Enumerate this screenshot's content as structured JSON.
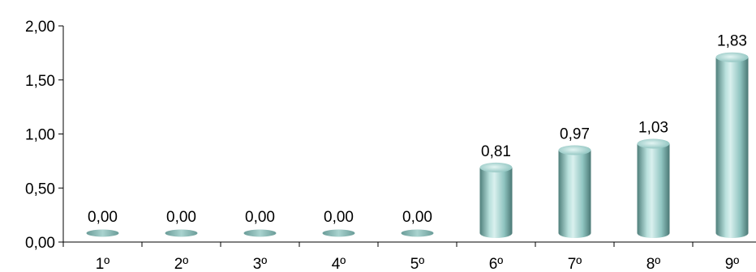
{
  "chart_data": {
    "type": "bar",
    "categories": [
      "1º",
      "2º",
      "3º",
      "4º",
      "5º",
      "6º",
      "7º",
      "8º",
      "9º"
    ],
    "values": [
      0.0,
      0.0,
      0.0,
      0.0,
      0.0,
      0.81,
      0.97,
      1.03,
      1.83
    ],
    "data_labels": [
      "0,00",
      "0,00",
      "0,00",
      "0,00",
      "0,00",
      "0,81",
      "0,97",
      "1,03",
      "1,83"
    ],
    "y_ticks": [
      "0,00",
      "0,50",
      "1,00",
      "1,50",
      "2,00"
    ],
    "y_tick_values": [
      0,
      0.5,
      1.0,
      1.5,
      2.0
    ],
    "ylim": [
      0,
      2
    ],
    "title": "",
    "xlabel": "",
    "ylabel": "",
    "grid": false,
    "legend": "none",
    "bar_shape": "cylinder",
    "colors": {
      "bar_light": "#d9f0ee",
      "bar_mid": "#8fc4c0",
      "bar_dark": "#4f7f7b",
      "bar_top": "#b9dedb"
    }
  }
}
